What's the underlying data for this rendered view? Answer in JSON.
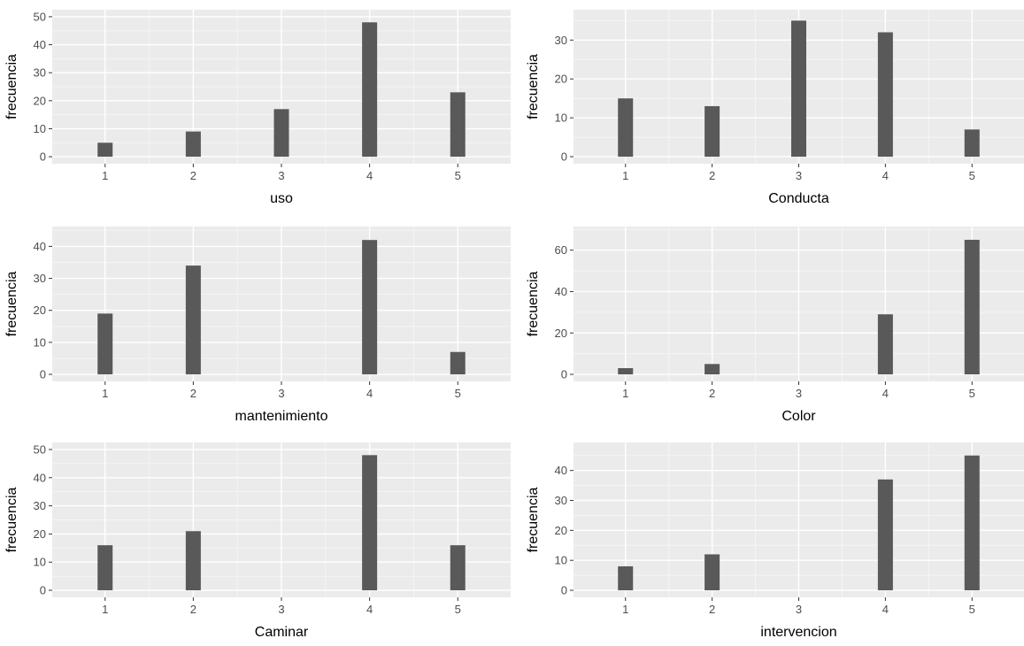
{
  "colors": {
    "panel_background": "#ebebeb",
    "grid_major": "#ffffff",
    "grid_minor": "#f5f5f5",
    "bar_fill": "#595959",
    "tick_text": "#4d4d4d",
    "title_text": "#000000"
  },
  "chart_data": [
    {
      "type": "bar",
      "xlabel": "uso",
      "ylabel": "frecuencia",
      "categories": [
        "1",
        "2",
        "3",
        "4",
        "5"
      ],
      "values": [
        5,
        9,
        17,
        48,
        23
      ],
      "ylim": [
        0,
        50
      ],
      "yticks": [
        0,
        10,
        20,
        30,
        40,
        50
      ],
      "grid": true
    },
    {
      "type": "bar",
      "xlabel": "Conducta",
      "ylabel": "frecuencia",
      "categories": [
        "1",
        "2",
        "3",
        "4",
        "5"
      ],
      "values": [
        15,
        13,
        35,
        32,
        7
      ],
      "ylim": [
        0,
        36
      ],
      "yticks": [
        0,
        10,
        20,
        30
      ],
      "grid": true
    },
    {
      "type": "bar",
      "xlabel": "mantenimiento",
      "ylabel": "frecuencia",
      "categories": [
        "1",
        "2",
        "3",
        "4",
        "5"
      ],
      "values": [
        19,
        34,
        0,
        42,
        7
      ],
      "ylim": [
        0,
        44
      ],
      "yticks": [
        0,
        10,
        20,
        30,
        40
      ],
      "grid": true
    },
    {
      "type": "bar",
      "xlabel": "Color",
      "ylabel": "frecuencia",
      "categories": [
        "1",
        "2",
        "3",
        "4",
        "5"
      ],
      "values": [
        3,
        5,
        0,
        29,
        65
      ],
      "ylim": [
        0,
        68
      ],
      "yticks": [
        0,
        20,
        40,
        60
      ],
      "grid": true
    },
    {
      "type": "bar",
      "xlabel": "Caminar",
      "ylabel": "frecuencia",
      "categories": [
        "1",
        "2",
        "3",
        "4",
        "5"
      ],
      "values": [
        16,
        21,
        0,
        48,
        16
      ],
      "ylim": [
        0,
        50
      ],
      "yticks": [
        0,
        10,
        20,
        30,
        40,
        50
      ],
      "grid": true
    },
    {
      "type": "bar",
      "xlabel": "intervencion",
      "ylabel": "frecuencia",
      "categories": [
        "1",
        "2",
        "3",
        "4",
        "5"
      ],
      "values": [
        8,
        12,
        0,
        37,
        45
      ],
      "ylim": [
        0,
        47
      ],
      "yticks": [
        0,
        10,
        20,
        30,
        40
      ],
      "grid": true
    }
  ]
}
